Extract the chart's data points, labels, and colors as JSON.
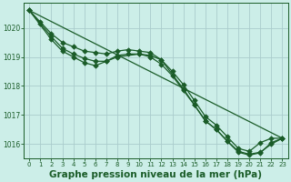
{
  "background_color": "#cceee8",
  "grid_color": "#aacccc",
  "line_color": "#1a5c28",
  "xlabel": "Graphe pression niveau de la mer (hPa)",
  "xlabel_fontsize": 7.5,
  "xlim": [
    -0.5,
    23.5
  ],
  "ylim": [
    1015.5,
    1020.85
  ],
  "yticks": [
    1016,
    1017,
    1018,
    1019,
    1020
  ],
  "xticks": [
    0,
    1,
    2,
    3,
    4,
    5,
    6,
    7,
    8,
    9,
    10,
    11,
    12,
    13,
    14,
    15,
    16,
    17,
    18,
    19,
    20,
    21,
    22,
    23
  ],
  "series": [
    {
      "x": [
        0,
        23
      ],
      "y": [
        1020.6,
        1016.2
      ],
      "marker": false
    },
    {
      "x": [
        0,
        1,
        2,
        3,
        4,
        5,
        6,
        7,
        8,
        9,
        10,
        11,
        12,
        13,
        14,
        15,
        16,
        17,
        18,
        19,
        20,
        21,
        22,
        23
      ],
      "y": [
        1020.6,
        1020.2,
        1019.8,
        1019.5,
        1019.35,
        1019.2,
        1019.15,
        1019.1,
        1019.2,
        1019.25,
        1019.2,
        1019.15,
        1018.9,
        1018.5,
        1018.05,
        1017.5,
        1016.95,
        1016.65,
        1016.25,
        1015.85,
        1015.75,
        1016.05,
        1016.2,
        1016.2
      ],
      "marker": true
    },
    {
      "x": [
        0,
        1,
        2,
        3,
        4,
        5,
        6,
        7,
        8,
        9,
        10,
        11,
        12,
        13,
        14,
        15,
        16,
        17,
        18,
        19,
        20,
        21,
        22,
        23
      ],
      "y": [
        1020.6,
        1020.15,
        1019.7,
        1019.3,
        1019.1,
        1018.95,
        1018.85,
        1018.85,
        1019.05,
        1019.1,
        1019.1,
        1019.0,
        1018.75,
        1018.35,
        1017.85,
        1017.35,
        1016.8,
        1016.5,
        1016.1,
        1015.75,
        1015.65,
        1015.72,
        1016.0,
        1016.2
      ],
      "marker": true
    },
    {
      "x": [
        0,
        2,
        3,
        4,
        5,
        6,
        7,
        8,
        10,
        11,
        12,
        14,
        15,
        16,
        17,
        18,
        19,
        20,
        21,
        22,
        23
      ],
      "y": [
        1020.6,
        1019.6,
        1019.2,
        1019.0,
        1018.8,
        1018.7,
        1018.85,
        1019.0,
        1019.1,
        1019.05,
        1018.9,
        1017.9,
        1017.35,
        1016.8,
        1016.5,
        1016.1,
        1015.72,
        1015.62,
        1015.7,
        1016.05,
        1016.2
      ],
      "marker": true
    }
  ],
  "marker_size": 2.8,
  "linewidth": 0.9
}
